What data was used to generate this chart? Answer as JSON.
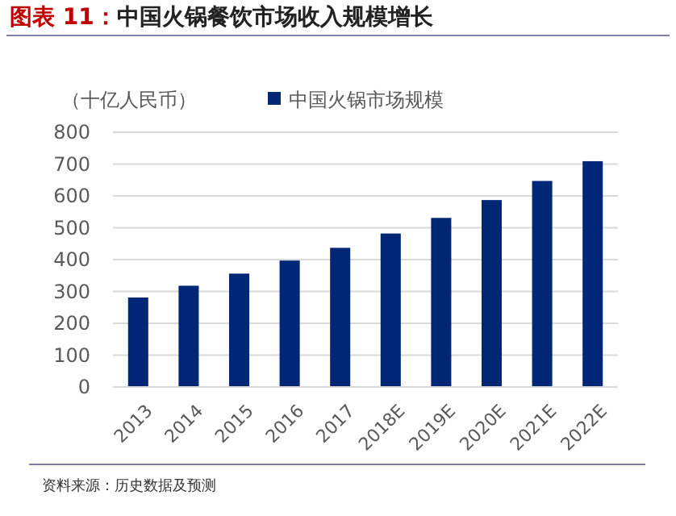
{
  "chart_data": {
    "type": "bar",
    "title": "图表 11：中国火锅餐饮市场收入规模增长",
    "ylabel": "（十亿人民币）",
    "categories": [
      "2013",
      "2014",
      "2015",
      "2016",
      "2017",
      "2018E",
      "2019E",
      "2020E",
      "2021E",
      "2022E"
    ],
    "series": [
      {
        "name": "中国火锅市场规模",
        "color": "#002776",
        "values": [
          281,
          318,
          356,
          397,
          437,
          482,
          531,
          587,
          647,
          709
        ]
      }
    ],
    "ylim": [
      0,
      800
    ],
    "yticks": [
      0,
      100,
      200,
      300,
      400,
      500,
      600,
      700,
      800
    ],
    "grid": "y",
    "legend": "top",
    "annotations": [
      "资料来源：历史数据及预测"
    ]
  }
}
